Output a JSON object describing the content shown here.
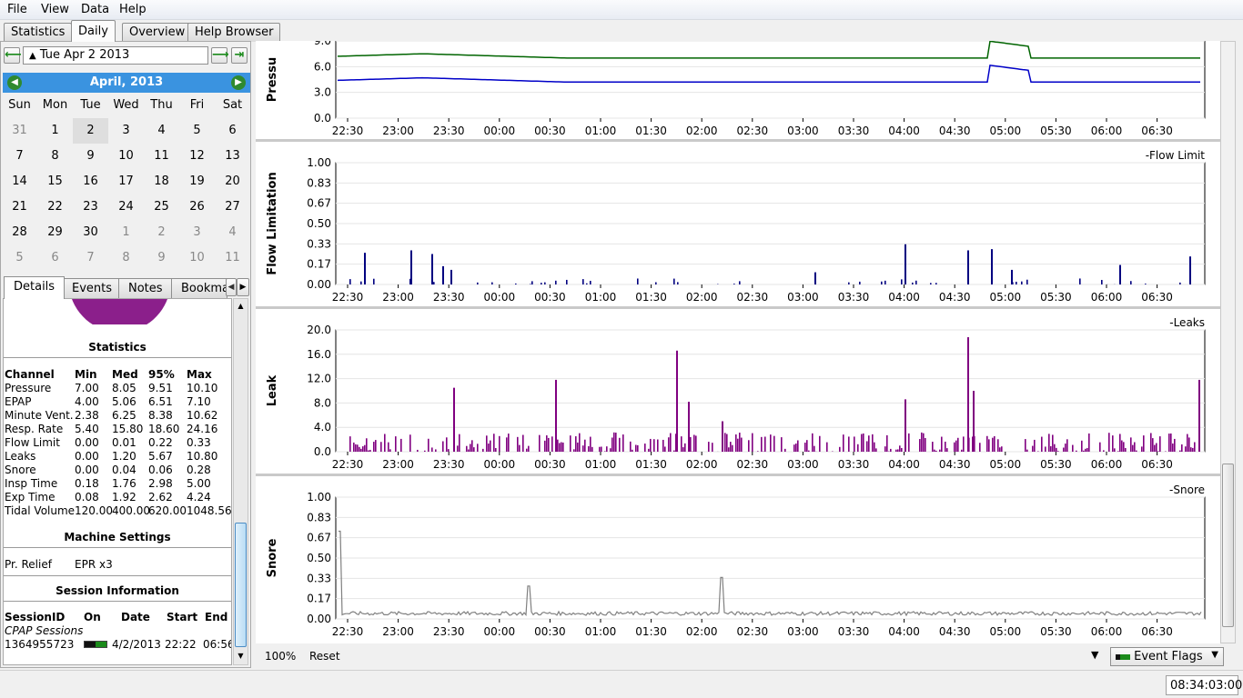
{
  "menu": [
    "File",
    "View",
    "Data",
    "Help"
  ],
  "tabs": [
    "Statistics",
    "Daily",
    "Overview",
    "Help Browser"
  ],
  "active_tab": "Daily",
  "date_picker": {
    "value": "Tue Apr 2 2013"
  },
  "calendar": {
    "month_label": "April,  2013",
    "days_of_week": [
      "Sun",
      "Mon",
      "Tue",
      "Wed",
      "Thu",
      "Fri",
      "Sat"
    ],
    "weeks": [
      [
        "31",
        "1",
        "2",
        "3",
        "4",
        "5",
        "6"
      ],
      [
        "7",
        "8",
        "9",
        "10",
        "11",
        "12",
        "13"
      ],
      [
        "14",
        "15",
        "16",
        "17",
        "18",
        "19",
        "20"
      ],
      [
        "21",
        "22",
        "23",
        "24",
        "25",
        "26",
        "27"
      ],
      [
        "28",
        "29",
        "30",
        "1",
        "2",
        "3",
        "4"
      ],
      [
        "5",
        "6",
        "7",
        "8",
        "9",
        "10",
        "11"
      ]
    ],
    "selected": "2"
  },
  "detail_tabs": [
    "Details",
    "Events",
    "Notes",
    "Bookma"
  ],
  "statistics": {
    "title": "Statistics",
    "headers": [
      "Channel",
      "Min",
      "Med",
      "95%",
      "Max"
    ],
    "rows": [
      [
        "Pressure",
        "7.00",
        "8.05",
        "9.51",
        "10.10"
      ],
      [
        "EPAP",
        "4.00",
        "5.06",
        "6.51",
        "7.10"
      ],
      [
        "Minute Vent.",
        "2.38",
        "6.25",
        "8.38",
        "10.62"
      ],
      [
        "Resp. Rate",
        "5.40",
        "15.80",
        "18.60",
        "24.16"
      ],
      [
        "Flow Limit",
        "0.00",
        "0.01",
        "0.22",
        "0.33"
      ],
      [
        "Leaks",
        "0.00",
        "1.20",
        "5.67",
        "10.80"
      ],
      [
        "Snore",
        "0.00",
        "0.04",
        "0.06",
        "0.28"
      ],
      [
        "Insp Time",
        "0.18",
        "1.76",
        "2.98",
        "5.00"
      ],
      [
        "Exp Time",
        "0.08",
        "1.92",
        "2.62",
        "4.24"
      ],
      [
        "Tidal Volume",
        "120.00",
        "400.00",
        "620.00",
        "1048.56"
      ]
    ]
  },
  "machine_settings": {
    "title": "Machine Settings",
    "label": "Pr. Relief",
    "value": "EPR x3"
  },
  "session_info": {
    "title": "Session Information",
    "headers": [
      "SessionID",
      "On",
      "Date",
      "Start",
      "End"
    ],
    "group": "CPAP Sessions",
    "row": {
      "id": "1364955723",
      "date": "4/2/2013",
      "start": "22:22",
      "end": "06:56"
    }
  },
  "x_ticks": [
    "22:30",
    "23:00",
    "23:30",
    "00:00",
    "00:30",
    "01:00",
    "01:30",
    "02:00",
    "02:30",
    "03:00",
    "03:30",
    "04:00",
    "04:30",
    "05:00",
    "05:30",
    "06:00",
    "06:30"
  ],
  "charts": [
    {
      "id": "pressure",
      "ylabel": "Pressu",
      "yticks": [
        "9.0",
        "6.0",
        "3.0",
        "0.0"
      ],
      "ymax": 9,
      "legend": ""
    },
    {
      "id": "flow",
      "ylabel": "Flow Limitation",
      "yticks": [
        "1.00",
        "0.83",
        "0.67",
        "0.50",
        "0.33",
        "0.17",
        "0.00"
      ],
      "ymax": 1,
      "legend": "Flow Limit"
    },
    {
      "id": "leak",
      "ylabel": "Leak",
      "yticks": [
        "20.0",
        "16.0",
        "12.0",
        "8.0",
        "4.0",
        "0.0"
      ],
      "ymax": 20,
      "legend": "Leaks"
    },
    {
      "id": "snore",
      "ylabel": "Snore",
      "yticks": [
        "1.00",
        "0.83",
        "0.67",
        "0.50",
        "0.33",
        "0.17",
        "0.00"
      ],
      "ymax": 1,
      "legend": "Snore"
    }
  ],
  "colors": {
    "pressure": "#006400",
    "epap": "#0000c8",
    "flow": "#000080",
    "leak": "#800080",
    "snore": "#808080",
    "accent": "#3a93e0"
  },
  "bottom": {
    "zoom": "100%",
    "reset": "Reset",
    "event_flags": "Event Flags"
  },
  "status": {
    "time": "08:34:03:000"
  }
}
